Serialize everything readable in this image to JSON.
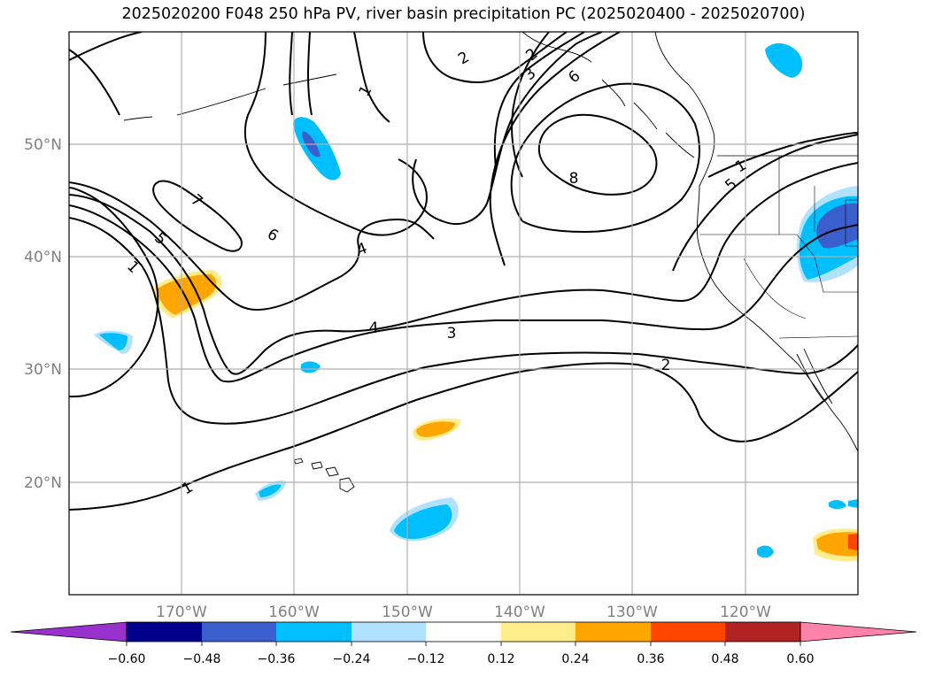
{
  "title": "2025020200 F048 250 hPa PV, river basin precipitation PC (2025020400 - 2025020700)",
  "lat_labels": [
    "50°N",
    "40°N",
    "30°N",
    "20°N"
  ],
  "lon_labels": [
    "170°W",
    "160°W",
    "150°W",
    "140°W",
    "130°W",
    "120°W"
  ],
  "contour_labels": {
    "c1a": "1",
    "c1b": "1",
    "c1c": "1",
    "c1d": "1",
    "c2a": "2",
    "c2b": "2",
    "c2c": "2",
    "c3a": "3",
    "c3b": "3",
    "c4a": "4",
    "c4b": "4",
    "c5a": "5",
    "c5b": "5",
    "c6a": "6",
    "c6b": "6",
    "c7": "7",
    "c8": "8"
  },
  "colorbar": {
    "ticks": [
      "−0.60",
      "−0.48",
      "−0.36",
      "−0.24",
      "−0.12",
      "0.12",
      "0.24",
      "0.36",
      "0.48",
      "0.60"
    ],
    "colors": [
      "#9932cc",
      "#00008b",
      "#3a5fcd",
      "#00bfff",
      "#b0e2ff",
      "#ffffff",
      "#ffec8b",
      "#ffa500",
      "#ff4500",
      "#b22222",
      "#ff82ab"
    ]
  },
  "colors": {
    "contour": "#000000",
    "grid": "#b0b0b0",
    "axis_label": "#808080"
  }
}
